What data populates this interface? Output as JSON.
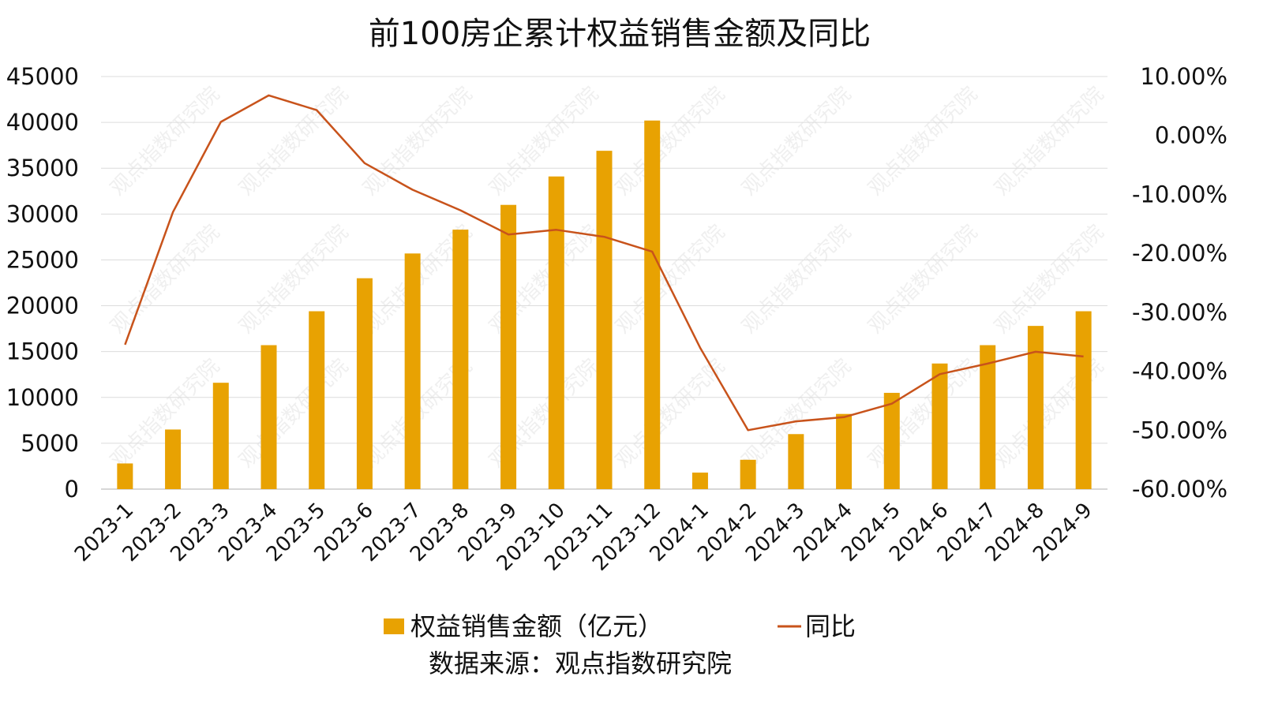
{
  "chart_data": {
    "type": "bar",
    "title": "前100房企累计权益销售金额及同比",
    "categories": [
      "2023-1",
      "2023-2",
      "2023-3",
      "2023-4",
      "2023-5",
      "2023-6",
      "2023-7",
      "2023-8",
      "2023-9",
      "2023-10",
      "2023-11",
      "2023-12",
      "2024-1",
      "2024-2",
      "2024-3",
      "2024-4",
      "2024-5",
      "2024-6",
      "2024-7",
      "2024-8",
      "2024-9"
    ],
    "series": [
      {
        "name": "权益销售金额（亿元）",
        "type": "bar",
        "axis": "left",
        "color": "#E8A202",
        "values": [
          2800,
          6500,
          11600,
          15700,
          19400,
          23000,
          25700,
          28300,
          31000,
          34100,
          36900,
          40200,
          1800,
          3200,
          6000,
          8200,
          10500,
          13700,
          15700,
          17800,
          19400
        ]
      },
      {
        "name": "同比",
        "type": "line",
        "axis": "right",
        "color": "#C8531B",
        "values": [
          -0.355,
          -0.13,
          0.023,
          0.068,
          0.043,
          -0.047,
          -0.092,
          -0.127,
          -0.168,
          -0.16,
          -0.172,
          -0.197,
          -0.36,
          -0.5,
          -0.485,
          -0.478,
          -0.455,
          -0.405,
          -0.387,
          -0.367,
          -0.375
        ]
      }
    ],
    "y_left": {
      "min": 0,
      "max": 45000,
      "ticks": [
        "0",
        "5000",
        "10000",
        "15000",
        "20000",
        "25000",
        "30000",
        "35000",
        "40000",
        "45000"
      ]
    },
    "y_right": {
      "min": -0.6,
      "max": 0.1,
      "ticks": [
        "-60.00%",
        "-50.00%",
        "-40.00%",
        "-30.00%",
        "-20.00%",
        "-10.00%",
        "0.00%",
        "10.00%"
      ]
    },
    "grid": true,
    "legend_position": "bottom",
    "source": "数据来源：观点指数研究院",
    "watermark": "观点指数研究院"
  }
}
